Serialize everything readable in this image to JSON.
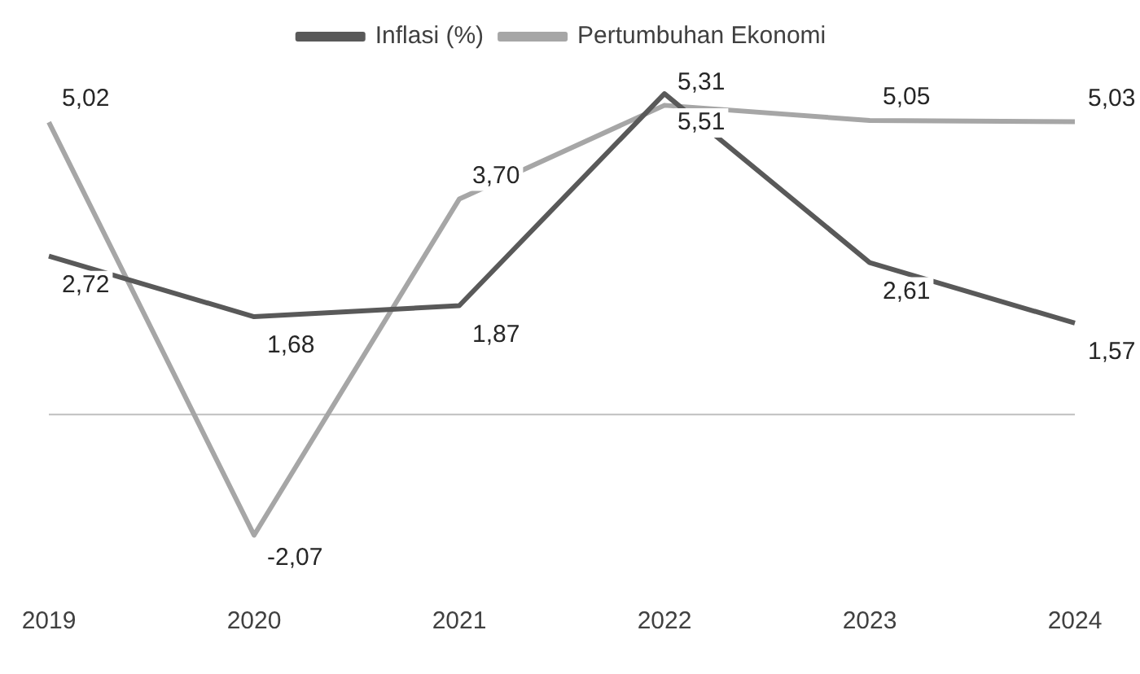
{
  "chart_data": {
    "type": "line",
    "categories": [
      "2019",
      "2020",
      "2021",
      "2022",
      "2023",
      "2024"
    ],
    "series": [
      {
        "name": "Inflasi (%)",
        "color": "#595959",
        "values": [
          2.72,
          1.68,
          1.87,
          5.51,
          2.61,
          1.57
        ],
        "value_labels": [
          "2,72",
          "1,68",
          "1,87",
          "5,51",
          "2,61",
          "1,57"
        ]
      },
      {
        "name": "Pertumbuhan Ekonomi",
        "color": "#a6a6a6",
        "values": [
          5.02,
          -2.07,
          3.7,
          5.31,
          5.05,
          5.03
        ],
        "value_labels": [
          "5,02",
          "-2,07",
          "3,70",
          "5,31",
          "5,05",
          "5,03"
        ]
      }
    ],
    "legend": "top",
    "grid": false,
    "marker": "none",
    "line_style": "solid"
  }
}
